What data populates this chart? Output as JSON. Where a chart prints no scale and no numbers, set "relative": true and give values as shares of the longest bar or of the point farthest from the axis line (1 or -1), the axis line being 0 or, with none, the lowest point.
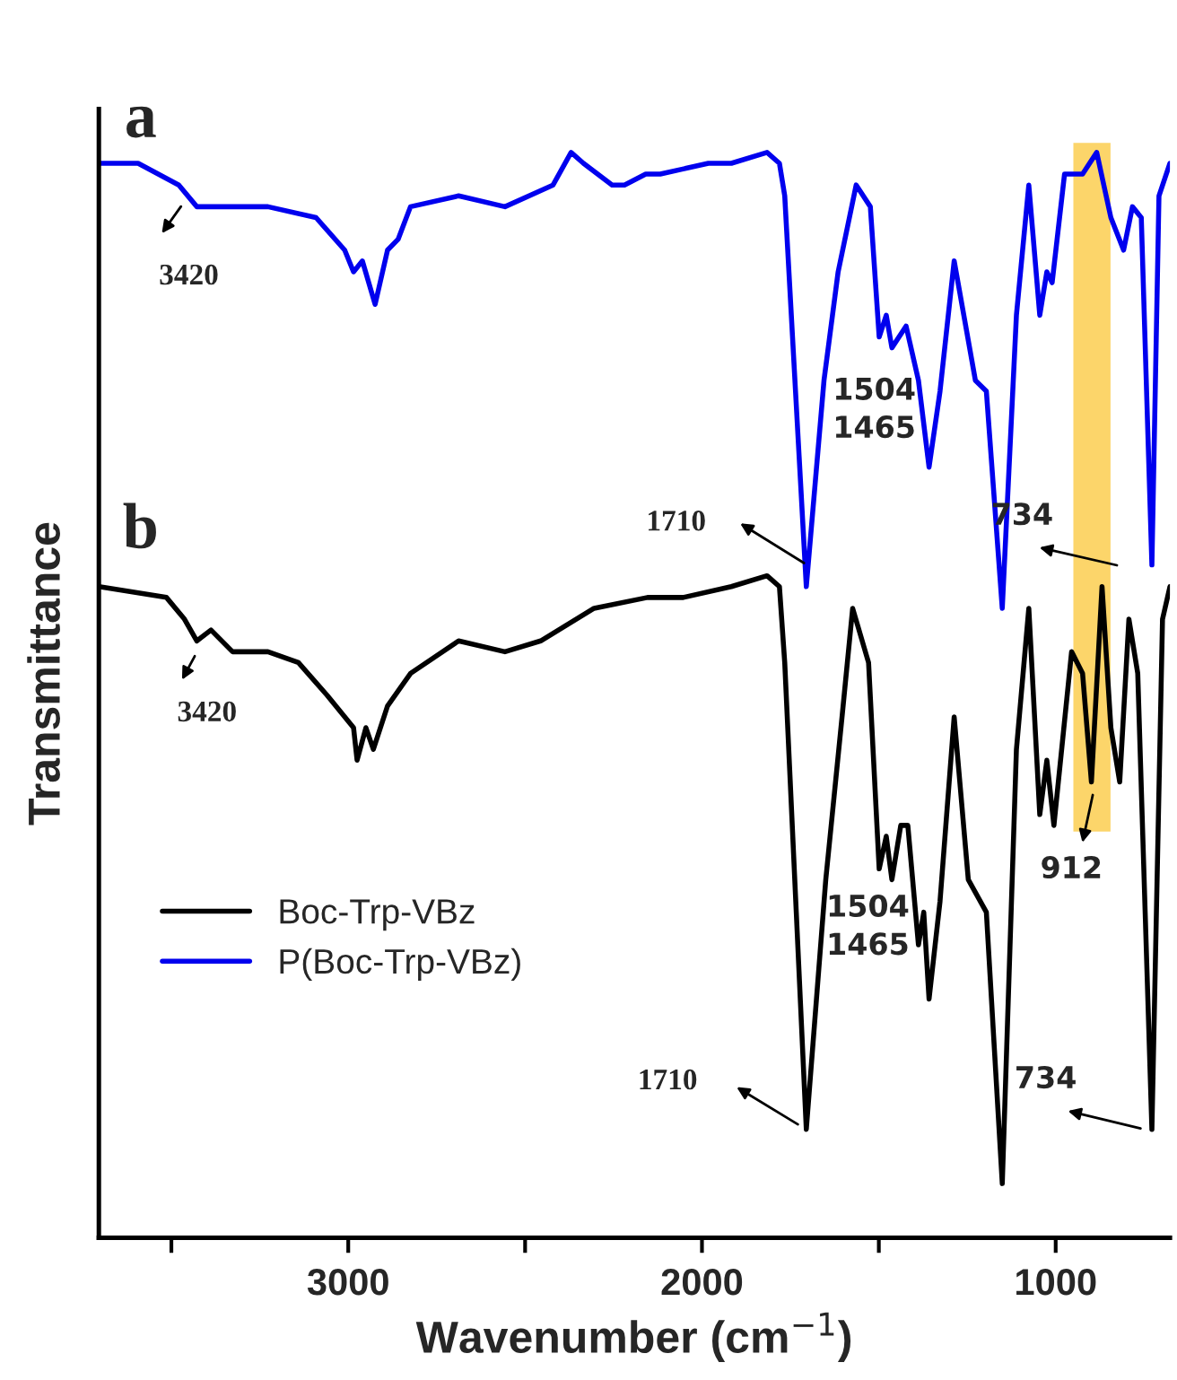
{
  "chart_data": {
    "type": "line",
    "relative": true,
    "xlabel": "Wavenumber (cm$^{−1}$)",
    "ylabel": "Transmittance",
    "xlim": [
      3705,
      677
    ],
    "xticks": [
      {
        "value": 3500,
        "label": null
      },
      3000,
      {
        "value": 2500,
        "label": null
      },
      2000,
      {
        "value": 1500,
        "label": null
      },
      1000
    ],
    "legend": "bottom left",
    "grid": false,
    "marker": "none",
    "line_style": "solid",
    "bands": [
      {
        "axis": "x",
        "from": 950,
        "to": 845,
        "color": "#fcd56a"
      }
    ],
    "series": [
      {
        "name": "Boc-Trp-VBz",
        "color": "#000000",
        "x": [
          3705,
          3514,
          3463,
          3428,
          3388,
          3327,
          3227,
          3141,
          3060,
          2985,
          2975,
          2950,
          2929,
          2889,
          2824,
          2688,
          2557,
          2456,
          2305,
          2154,
          2053,
          1917,
          1816,
          1781,
          1766,
          1705,
          1650,
          1604,
          1574,
          1529,
          1499,
          1479,
          1463,
          1438,
          1418,
          1388,
          1373,
          1358,
          1327,
          1287,
          1247,
          1196,
          1151,
          1111,
          1076,
          1045,
          1025,
          1005,
          955,
          924,
          899,
          869,
          844,
          819,
          793,
          768,
          728,
          698,
          677
        ],
        "values": [
          0.6,
          0.59,
          0.57,
          0.55,
          0.56,
          0.54,
          0.54,
          0.53,
          0.5,
          0.47,
          0.44,
          0.47,
          0.45,
          0.49,
          0.52,
          0.55,
          0.54,
          0.55,
          0.58,
          0.59,
          0.59,
          0.6,
          0.61,
          0.6,
          0.53,
          0.1,
          0.33,
          0.48,
          0.58,
          0.53,
          0.34,
          0.37,
          0.33,
          0.38,
          0.38,
          0.27,
          0.3,
          0.22,
          0.31,
          0.48,
          0.33,
          0.3,
          0.05,
          0.45,
          0.58,
          0.39,
          0.44,
          0.38,
          0.54,
          0.52,
          0.42,
          0.6,
          0.47,
          0.42,
          0.57,
          0.52,
          0.1,
          0.57,
          0.6
        ]
      },
      {
        "name": "P(Boc-Trp-VBz)",
        "color": "#0000ee",
        "x": [
          3705,
          3630,
          3594,
          3479,
          3428,
          3227,
          3091,
          3010,
          2985,
          2960,
          2924,
          2889,
          2859,
          2824,
          2688,
          2557,
          2421,
          2370,
          2335,
          2254,
          2219,
          2159,
          2118,
          1982,
          1917,
          1816,
          1781,
          1766,
          1705,
          1655,
          1615,
          1564,
          1524,
          1499,
          1479,
          1463,
          1423,
          1388,
          1358,
          1327,
          1287,
          1227,
          1196,
          1151,
          1111,
          1076,
          1045,
          1025,
          1010,
          975,
          924,
          884,
          844,
          808,
          783,
          758,
          728,
          708,
          677
        ],
        "values": [
          0.99,
          0.99,
          0.99,
          0.97,
          0.95,
          0.95,
          0.94,
          0.91,
          0.89,
          0.9,
          0.86,
          0.91,
          0.92,
          0.95,
          0.96,
          0.95,
          0.97,
          1.0,
          0.99,
          0.97,
          0.97,
          0.98,
          0.98,
          0.99,
          0.99,
          1.0,
          0.99,
          0.96,
          0.6,
          0.79,
          0.89,
          0.97,
          0.95,
          0.83,
          0.85,
          0.82,
          0.84,
          0.79,
          0.71,
          0.78,
          0.9,
          0.79,
          0.78,
          0.58,
          0.85,
          0.97,
          0.85,
          0.89,
          0.88,
          0.98,
          0.98,
          1.0,
          0.94,
          0.91,
          0.95,
          0.94,
          0.62,
          0.96,
          0.99
        ]
      }
    ],
    "annotations": [
      "a",
      "b",
      "3420",
      "1710",
      "1504\n1465",
      "734",
      "3420",
      "1710",
      "1504\n1465",
      "912",
      "734"
    ]
  }
}
